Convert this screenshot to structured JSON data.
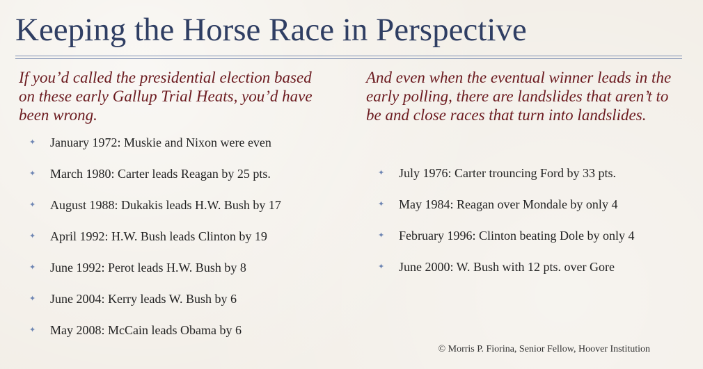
{
  "title": "Keeping the Horse Race in Perspective",
  "left": {
    "heading": "If you’d called the presidential election based on these early Gallup Trial Heats, you’d have been wrong.",
    "items": [
      "January 1972: Muskie and Nixon were even",
      "March 1980: Carter leads Reagan by 25 pts.",
      "August 1988: Dukakis leads H.W. Bush by 17",
      "April 1992: H.W. Bush leads Clinton by 19",
      "June 1992: Perot leads H.W. Bush by 8",
      "June 2004: Kerry leads W. Bush by 6",
      "May 2008: McCain leads Obama by 6"
    ]
  },
  "right": {
    "heading": "And even when the eventual winner leads in the early polling, there are landslides that aren’t to be and close races that turn into landslides.",
    "items": [
      "July 1976: Carter trouncing Ford by 33 pts.",
      "May 1984: Reagan over Mondale by only 4",
      "February 1996: Clinton beating Dole by only 4",
      "June 2000: W. Bush with 12 pts. over Gore"
    ]
  },
  "bullet_glyph": "✦",
  "footer": "© Morris P. Fiorina, Senior Fellow, Hoover Institution",
  "colors": {
    "title": "#2f3e63",
    "heading": "#6b1a1f",
    "bullet": "#6d85b3",
    "text": "#222222",
    "background": "#f2eee7"
  }
}
